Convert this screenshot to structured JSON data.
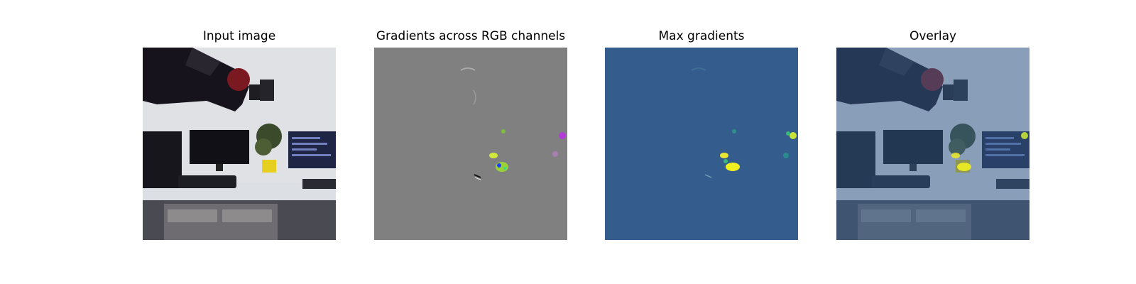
{
  "figure": {
    "panels": [
      {
        "title": "Input image",
        "content": "robot-arm-desk-photo"
      },
      {
        "title": "Gradients across RGB channels",
        "content": "rgb-gradient-map"
      },
      {
        "title": "Max gradients",
        "content": "max-gradient-heatmap"
      },
      {
        "title": "Overlay",
        "content": "gradient-overlay-photo"
      }
    ],
    "colors": {
      "gradient_background": "#808080",
      "heatmap_background": "#345d8e",
      "heatmap_high": "#f0f020",
      "heatmap_mid": "#37b77a"
    }
  }
}
